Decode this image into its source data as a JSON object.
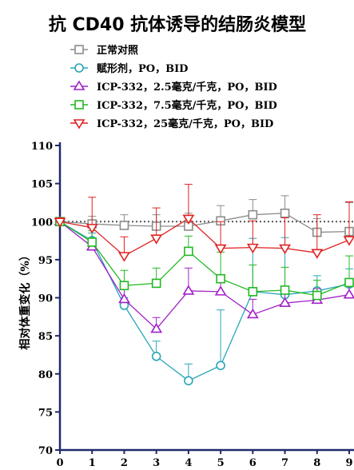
{
  "chart_data": {
    "type": "line",
    "title": "抗 CD40 抗体诱导的结肠炎模型",
    "xlabel": "",
    "ylabel": "相对体重变化（%）",
    "x": [
      0,
      1,
      2,
      3,
      4,
      5,
      6,
      7,
      8,
      9
    ],
    "xlim": [
      0,
      9
    ],
    "ylim": [
      70,
      110
    ],
    "yticks": [
      70,
      75,
      80,
      85,
      90,
      95,
      100,
      105,
      110
    ],
    "reference_line": 100,
    "grid": false,
    "legend_position": "top-left",
    "series": [
      {
        "name": "正常对照",
        "color": "#8c8c8c",
        "marker": "square",
        "values": [
          100,
          99.7,
          99.5,
          99.4,
          99.4,
          100.1,
          100.9,
          101.1,
          98.6,
          98.7
        ],
        "errors": [
          0.5,
          1.0,
          1.4,
          1.5,
          1.7,
          2.0,
          2.0,
          2.3,
          1.8,
          3.8
        ]
      },
      {
        "name": "赋形剂，PO，BID",
        "color": "#2aa6b8",
        "marker": "circle",
        "values": [
          100,
          97.5,
          89.0,
          82.3,
          79.1,
          81.1,
          90.8,
          90.4,
          90.9,
          91.8
        ],
        "errors": [
          0.5,
          1.0,
          1.0,
          2.0,
          2.2,
          7.3,
          7.0,
          7.5,
          2.0,
          2.0
        ]
      },
      {
        "name": "ICP-332，2.5毫克/千克，PO，BID",
        "color": "#a020c8",
        "marker": "triangle-up",
        "values": [
          100,
          96.7,
          89.8,
          85.9,
          90.9,
          90.8,
          87.8,
          89.3,
          89.7,
          90.4
        ],
        "errors": [
          0.5,
          1.0,
          2.0,
          1.5,
          3.0,
          1.5,
          2.0,
          2.0,
          1.5,
          1.5
        ]
      },
      {
        "name": "ICP-332，7.5毫克/千克，PO，BID",
        "color": "#22b822",
        "marker": "square",
        "values": [
          100,
          97.3,
          91.6,
          91.9,
          96.1,
          92.5,
          90.8,
          91.0,
          90.3,
          92.0
        ],
        "errors": [
          0.5,
          1.5,
          2.0,
          2.0,
          2.0,
          3.5,
          3.5,
          3.0,
          2.0,
          3.5
        ]
      },
      {
        "name": "ICP-332，25毫克/千克，PO，BID",
        "color": "#e02020",
        "marker": "triangle-down",
        "values": [
          100,
          99.2,
          95.5,
          97.8,
          100.4,
          96.5,
          96.6,
          96.5,
          95.9,
          97.6
        ],
        "errors": [
          0.5,
          4.0,
          2.5,
          4.0,
          4.5,
          3.5,
          3.5,
          4.0,
          5.0,
          5.0
        ]
      }
    ]
  }
}
